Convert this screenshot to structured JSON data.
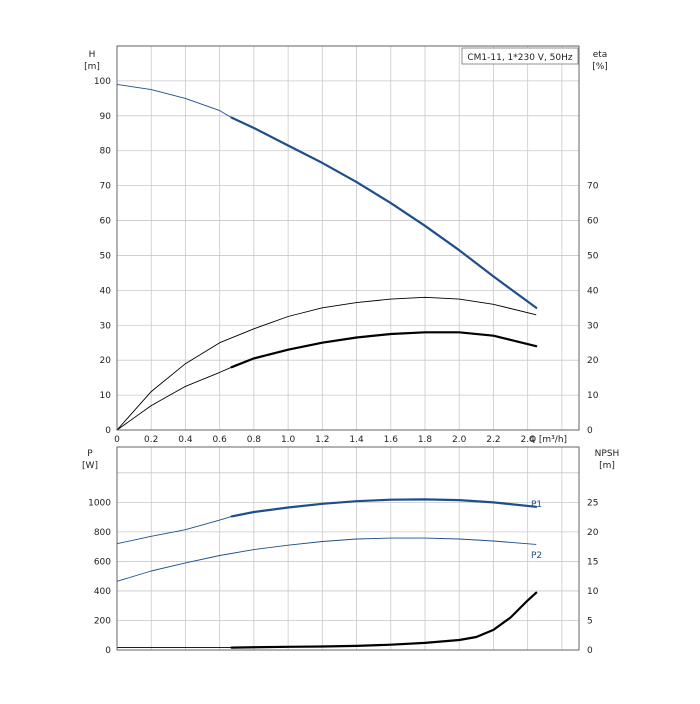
{
  "chart_data": [
    {
      "type": "line",
      "title": "CM1-11, 1*230 V, 50Hz",
      "xlabel": "Q [m³/h]",
      "ylabel": "H",
      "yunit": "[m]",
      "ylabel_right": "eta",
      "yunit_right": "[%]",
      "xlim": [
        0,
        2.7
      ],
      "ylim": [
        0,
        110
      ],
      "ylim_right": [
        0,
        110
      ],
      "grid": true,
      "xticks": [
        "0",
        "0.2",
        "0.4",
        "0.6",
        "0.8",
        "1.0",
        "1.2",
        "1.4",
        "1.6",
        "1.8",
        "2.0",
        "2.2",
        "2.4"
      ],
      "yticks": [
        "0",
        "10",
        "20",
        "30",
        "40",
        "50",
        "60",
        "70",
        "80",
        "90",
        "100"
      ],
      "yticks_right": [
        "0",
        "10",
        "20",
        "30",
        "40",
        "50",
        "60",
        "70"
      ],
      "series": [
        {
          "axis": "left",
          "color": "#1f4e8c",
          "operating_range": [
            0.67,
            2.45
          ],
          "x": [
            0,
            0.2,
            0.4,
            0.6,
            0.67,
            0.8,
            1.0,
            1.2,
            1.4,
            1.6,
            1.8,
            2.0,
            2.2,
            2.45
          ],
          "y": [
            99,
            97.5,
            95,
            91.5,
            89.5,
            86.5,
            81.5,
            76.5,
            71,
            65,
            58.5,
            51.5,
            44,
            35
          ]
        },
        {
          "axis": "right",
          "color": "#000000",
          "x": [
            0,
            0.2,
            0.4,
            0.6,
            0.8,
            1.0,
            1.2,
            1.4,
            1.6,
            1.8,
            2.0,
            2.2,
            2.45
          ],
          "y": [
            0,
            11,
            19,
            25,
            29,
            32.5,
            35,
            36.5,
            37.5,
            38,
            37.5,
            36,
            33
          ]
        },
        {
          "axis": "right",
          "color": "#000000",
          "operating_range": [
            0.67,
            2.45
          ],
          "x": [
            0,
            0.2,
            0.4,
            0.6,
            0.67,
            0.8,
            1.0,
            1.2,
            1.4,
            1.6,
            1.8,
            2.0,
            2.2,
            2.45
          ],
          "y": [
            0,
            7,
            12.5,
            16.5,
            18,
            20.5,
            23,
            25,
            26.5,
            27.5,
            28,
            28,
            27,
            24
          ]
        }
      ]
    },
    {
      "type": "line",
      "ylabel": "P",
      "yunit": "[W]",
      "ylabel_right": "NPSH",
      "yunit_right": "[m]",
      "xlim": [
        0,
        2.7
      ],
      "ylim": [
        0,
        1375
      ],
      "ylim_right": [
        0,
        34.375
      ],
      "grid": true,
      "yticks": [
        "0",
        "200",
        "400",
        "600",
        "800",
        "1000"
      ],
      "yticks_right": [
        "0",
        "5",
        "10",
        "15",
        "20",
        "25"
      ],
      "series": [
        {
          "name": "P1",
          "axis": "left",
          "color": "#1f4e8c",
          "operating_range": [
            0.67,
            2.45
          ],
          "x": [
            0,
            0.2,
            0.4,
            0.6,
            0.67,
            0.8,
            1.0,
            1.2,
            1.4,
            1.6,
            1.8,
            2.0,
            2.2,
            2.45
          ],
          "y": [
            720,
            770,
            815,
            880,
            905,
            935,
            965,
            990,
            1008,
            1018,
            1020,
            1015,
            1000,
            970
          ]
        },
        {
          "name": "P2",
          "axis": "left",
          "color": "#1f4e8c",
          "x": [
            0,
            0.2,
            0.4,
            0.6,
            0.8,
            1.0,
            1.2,
            1.4,
            1.6,
            1.8,
            2.0,
            2.2,
            2.45
          ],
          "y": [
            465,
            535,
            590,
            640,
            680,
            710,
            735,
            752,
            758,
            758,
            752,
            738,
            715
          ]
        },
        {
          "axis": "right",
          "color": "#000000",
          "operating_range": [
            0.67,
            2.45
          ],
          "x": [
            0,
            0.67,
            1.0,
            1.2,
            1.4,
            1.6,
            1.8,
            2.0,
            2.1,
            2.2,
            2.3,
            2.4,
            2.45
          ],
          "y": [
            0.4,
            0.4,
            0.55,
            0.6,
            0.7,
            0.9,
            1.2,
            1.7,
            2.2,
            3.4,
            5.5,
            8.4,
            9.7
          ]
        }
      ]
    }
  ]
}
